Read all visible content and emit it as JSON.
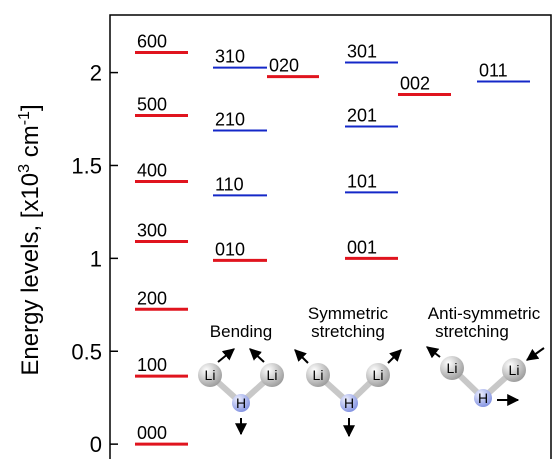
{
  "chart_data": {
    "type": "levels",
    "ylabel": [
      "Energy levels, [x10",
      "3",
      " cm",
      "-1",
      "]"
    ],
    "ylim": [
      -0.08,
      2.31
    ],
    "yticks": [
      0,
      0.5,
      1,
      1.5,
      2
    ],
    "levels": [
      {
        "label": "000",
        "value": 0,
        "color": "#e0141e"
      },
      {
        "label": "100",
        "value": 0.366,
        "color": "#e0141e"
      },
      {
        "label": "200",
        "value": 0.726,
        "color": "#e0141e"
      },
      {
        "label": "300",
        "value": 1.091,
        "color": "#e0141e"
      },
      {
        "label": "400",
        "value": 1.414,
        "color": "#e0141e"
      },
      {
        "label": "500",
        "value": 1.769,
        "color": "#e0141e"
      },
      {
        "label": "600",
        "value": 2.108,
        "color": "#e0141e"
      },
      {
        "label": "010",
        "value": 0.989,
        "color": "#e0141e"
      },
      {
        "label": "110",
        "value": 1.339,
        "color": "#1428c8"
      },
      {
        "label": "210",
        "value": 1.688,
        "color": "#1428c8"
      },
      {
        "label": "310",
        "value": 2.027,
        "color": "#1428c8"
      },
      {
        "label": "020",
        "value": 1.978,
        "color": "#e0141e"
      },
      {
        "label": "001",
        "value": 1.0,
        "color": "#e0141e"
      },
      {
        "label": "101",
        "value": 1.355,
        "color": "#1428c8"
      },
      {
        "label": "201",
        "value": 1.71,
        "color": "#1428c8"
      },
      {
        "label": "301",
        "value": 2.054,
        "color": "#1428c8"
      },
      {
        "label": "002",
        "value": 1.882,
        "color": "#e0141e"
      },
      {
        "label": "011",
        "value": 1.952,
        "color": "#1428c8"
      }
    ],
    "modes": [
      {
        "title": [
          "Bending"
        ],
        "atoms": [
          "Li",
          "Li",
          "H"
        ]
      },
      {
        "title": [
          "Symmetric",
          "stretching"
        ],
        "atoms": [
          "Li",
          "Li",
          "H"
        ]
      },
      {
        "title": [
          "Anti-symmetric",
          "stretching"
        ],
        "atoms": [
          "Li",
          "Li",
          "H"
        ]
      }
    ]
  }
}
